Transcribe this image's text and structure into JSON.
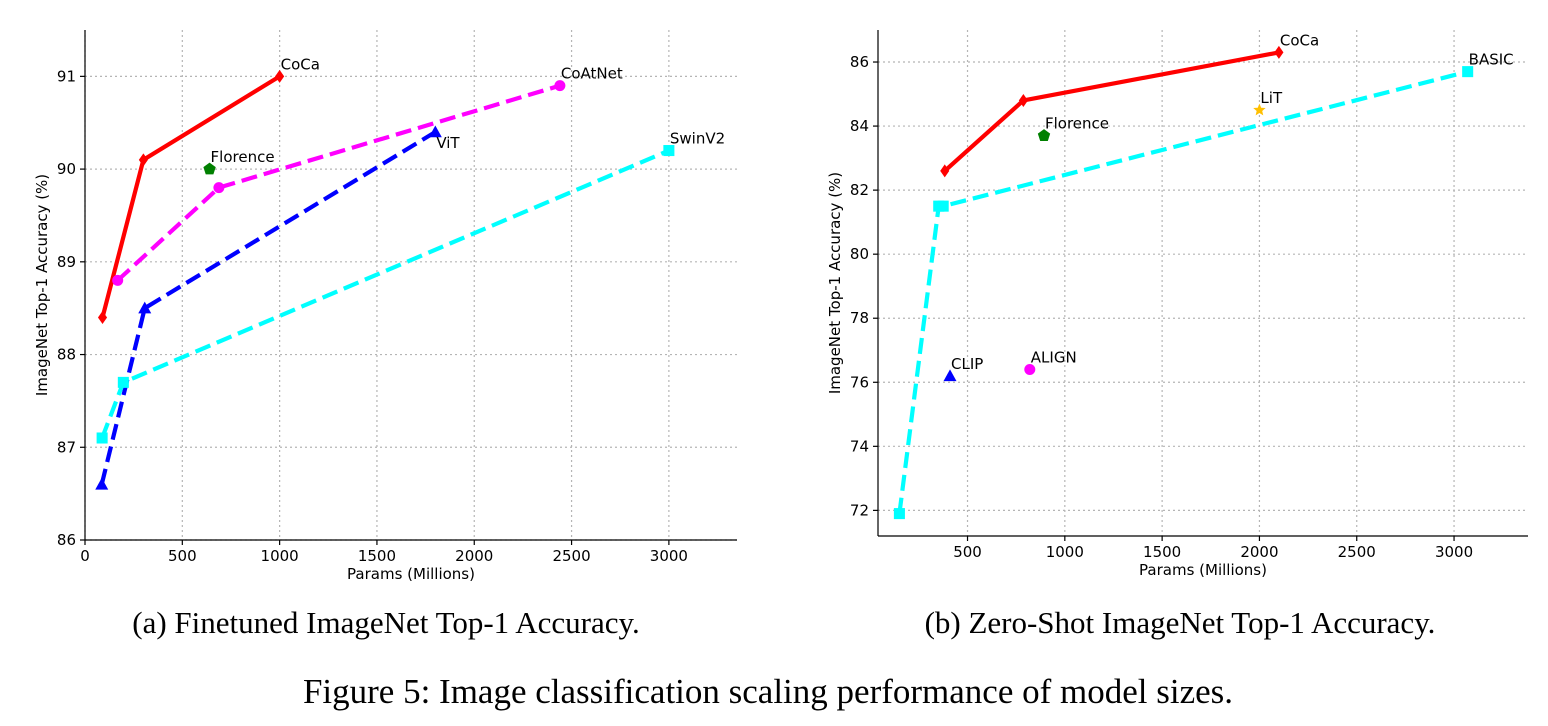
{
  "chart_data": [
    {
      "id": "a",
      "type": "line",
      "xlabel": "Params (Millions)",
      "ylabel": "ImageNet Top-1 Accuracy (%)",
      "xlim": [
        0,
        3350
      ],
      "ylim": [
        86,
        91.5
      ],
      "xticks": [
        0,
        500,
        1000,
        1500,
        2000,
        2500,
        3000
      ],
      "yticks": [
        86,
        87,
        88,
        89,
        90,
        91
      ],
      "caption": "(a) Finetuned ImageNet Top-1 Accuracy.",
      "series": [
        {
          "name": "CoCa",
          "color": "#ff0000",
          "style": "solid",
          "marker": "diamond",
          "x": [
            90,
            300,
            1000
          ],
          "y": [
            88.4,
            90.1,
            91.0
          ]
        },
        {
          "name": "CoAtNet",
          "color": "#ff00ff",
          "style": "dashed",
          "marker": "circle",
          "x": [
            168,
            688,
            2440
          ],
          "y": [
            88.8,
            89.8,
            90.9
          ]
        },
        {
          "name": "ViT",
          "color": "#0000ff",
          "style": "dashed",
          "marker": "triangle",
          "x": [
            86,
            307,
            1800
          ],
          "y": [
            86.6,
            88.5,
            90.4
          ]
        },
        {
          "name": "SwinV2",
          "color": "#00ffff",
          "style": "dashed",
          "marker": "square",
          "x": [
            88,
            197,
            3000
          ],
          "y": [
            87.1,
            87.7,
            90.2
          ]
        },
        {
          "name": "Florence",
          "color": "#008000",
          "style": "none",
          "marker": "pentagon",
          "x": [
            640
          ],
          "y": [
            90.0
          ]
        }
      ],
      "annotations": [
        {
          "text": "CoCa",
          "x": 1000,
          "y": 91.0,
          "pos": "top-right"
        },
        {
          "text": "CoAtNet",
          "x": 2440,
          "y": 90.9,
          "pos": "top-right"
        },
        {
          "text": "Florence",
          "x": 640,
          "y": 90.0,
          "pos": "top-right"
        },
        {
          "text": "ViT",
          "x": 1800,
          "y": 90.4,
          "pos": "bottom-right"
        },
        {
          "text": "SwinV2",
          "x": 3000,
          "y": 90.2,
          "pos": "top-right"
        }
      ]
    },
    {
      "id": "b",
      "type": "line",
      "xlabel": "Params (Millions)",
      "ylabel": "ImageNet Top-1 Accuracy (%)",
      "xlim": [
        40,
        3380
      ],
      "ylim": [
        71.2,
        87.0
      ],
      "xticks": [
        500,
        1000,
        1500,
        2000,
        2500,
        3000
      ],
      "yticks": [
        72,
        74,
        76,
        78,
        80,
        82,
        84,
        86
      ],
      "caption": "(b) Zero-Shot ImageNet Top-1 Accuracy.",
      "series": [
        {
          "name": "CoCa",
          "color": "#ff0000",
          "style": "solid",
          "marker": "diamond",
          "x": [
            383,
            787,
            2100
          ],
          "y": [
            82.6,
            84.8,
            86.3
          ]
        },
        {
          "name": "BASIC",
          "color": "#00ffff",
          "style": "dashed",
          "marker": "square",
          "x": [
            150,
            352,
            375,
            3070
          ],
          "y": [
            71.9,
            81.5,
            81.5,
            85.7
          ]
        },
        {
          "name": "LiT",
          "color": "#ffbf00",
          "style": "none",
          "marker": "star",
          "x": [
            2000
          ],
          "y": [
            84.5
          ]
        },
        {
          "name": "Florence",
          "color": "#008000",
          "style": "none",
          "marker": "pentagon",
          "x": [
            893
          ],
          "y": [
            83.7
          ]
        },
        {
          "name": "CLIP",
          "color": "#0000ff",
          "style": "none",
          "marker": "triangle",
          "x": [
            410
          ],
          "y": [
            76.2
          ]
        },
        {
          "name": "ALIGN",
          "color": "#ff00ff",
          "style": "none",
          "marker": "circle",
          "x": [
            820
          ],
          "y": [
            76.4
          ]
        }
      ],
      "annotations": [
        {
          "text": "CoCa",
          "x": 2100,
          "y": 86.3,
          "pos": "top-right"
        },
        {
          "text": "BASIC",
          "x": 3070,
          "y": 85.7,
          "pos": "top-right"
        },
        {
          "text": "LiT",
          "x": 2000,
          "y": 84.5,
          "pos": "top-right"
        },
        {
          "text": "Florence",
          "x": 893,
          "y": 83.7,
          "pos": "top-right"
        },
        {
          "text": "CLIP",
          "x": 410,
          "y": 76.2,
          "pos": "top-right"
        },
        {
          "text": "ALIGN",
          "x": 820,
          "y": 76.4,
          "pos": "top-right"
        }
      ]
    }
  ],
  "figure_caption": "Figure 5: Image classification scaling performance of model sizes."
}
